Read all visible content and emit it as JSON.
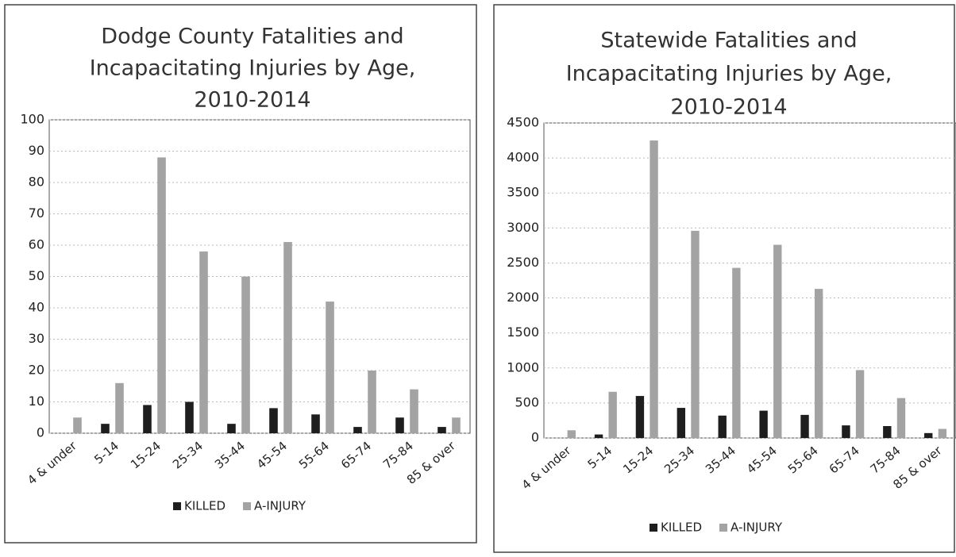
{
  "chart_data": [
    {
      "type": "bar",
      "title": [
        "Dodge County Fatalities and",
        "Incapacitating Injuries by Age,",
        "2010-2014"
      ],
      "categories": [
        "4 & under",
        "5-14",
        "15-24",
        "25-34",
        "35-44",
        "45-54",
        "55-64",
        "65-74",
        "75-84",
        "85 & over"
      ],
      "series": [
        {
          "name": "KILLED",
          "color": "#1e1e1e",
          "values": [
            0,
            3,
            9,
            10,
            3,
            8,
            6,
            2,
            5,
            2
          ]
        },
        {
          "name": "A-INJURY",
          "color": "#a3a3a3",
          "values": [
            5,
            16,
            88,
            58,
            50,
            61,
            42,
            20,
            14,
            5
          ]
        }
      ],
      "ylim": [
        0,
        100
      ],
      "yticks": [
        0,
        10,
        20,
        30,
        40,
        50,
        60,
        70,
        80,
        90,
        100
      ],
      "grid": true,
      "legend": "bottom"
    },
    {
      "type": "bar",
      "title": [
        "Statewide Fatalities and",
        "Incapacitating Injuries by Age,",
        "2010-2014"
      ],
      "categories": [
        "4 & under",
        "5-14",
        "15-24",
        "25-34",
        "35-44",
        "45-54",
        "55-64",
        "65-74",
        "75-84",
        "85 & over"
      ],
      "series": [
        {
          "name": "KILLED",
          "color": "#1e1e1e",
          "values": [
            0,
            50,
            600,
            430,
            320,
            390,
            330,
            180,
            170,
            70
          ]
        },
        {
          "name": "A-INJURY",
          "color": "#a3a3a3",
          "values": [
            110,
            660,
            4250,
            2960,
            2430,
            2760,
            2130,
            970,
            570,
            130
          ]
        }
      ],
      "ylim": [
        0,
        4500
      ],
      "yticks": [
        0,
        500,
        1000,
        1500,
        2000,
        2500,
        3000,
        3500,
        4000,
        4500
      ],
      "grid": true,
      "legend": "bottom"
    }
  ]
}
